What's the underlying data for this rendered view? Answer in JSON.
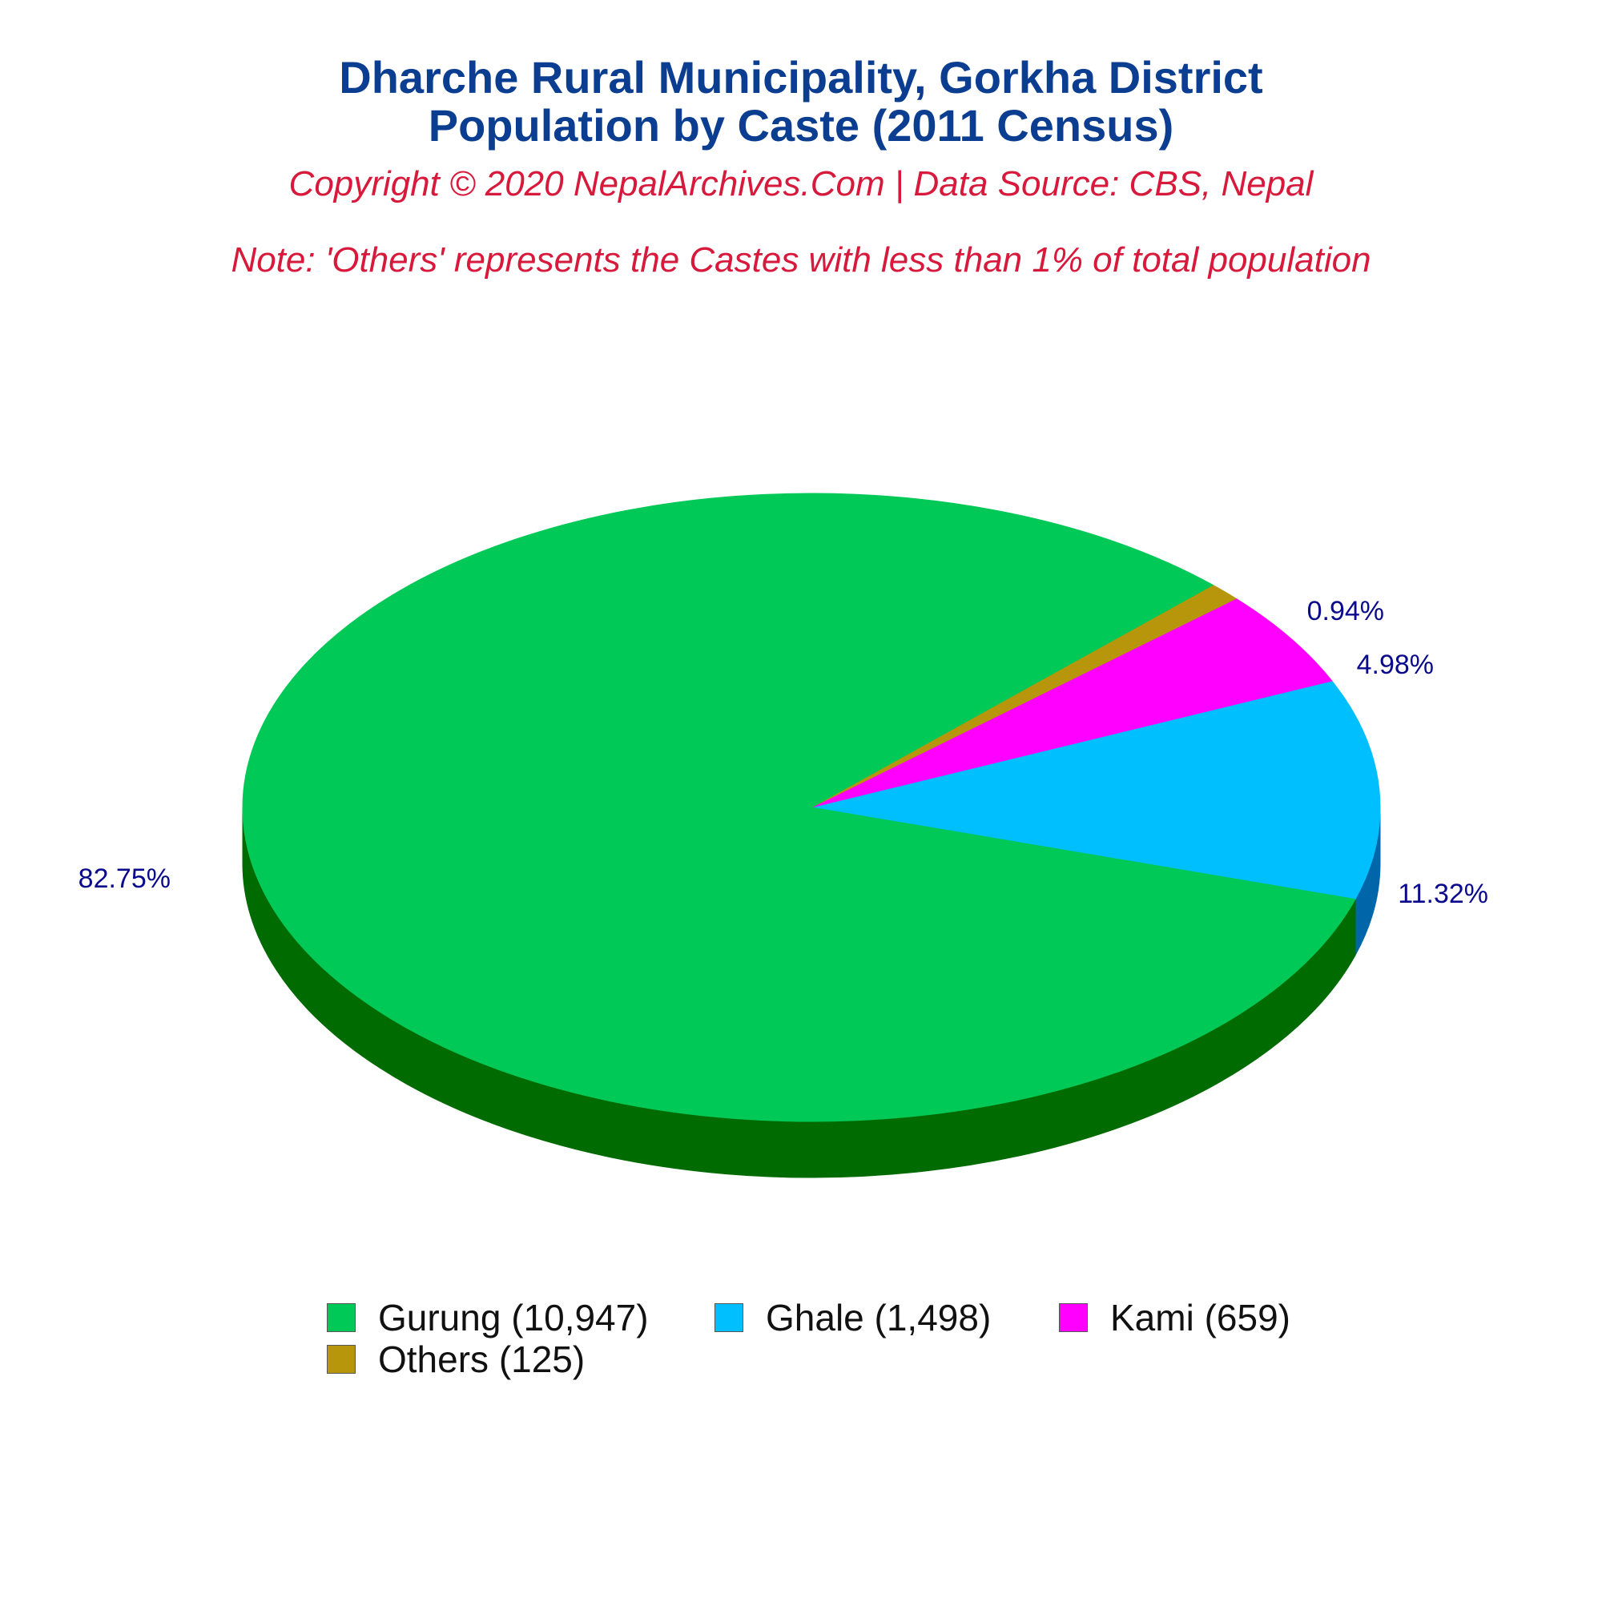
{
  "title_line1": "Dharche Rural Municipality, Gorkha District",
  "title_line2": "Population by Caste (2011 Census)",
  "copyright": "Copyright © 2020 NepalArchives.Com | Data Source: CBS, Nepal",
  "note": "Note: 'Others' represents the Castes with less than 1% of total population",
  "chart_data": {
    "type": "pie",
    "title": "Dharche Rural Municipality, Gorkha District Population by Caste (2011 Census)",
    "categories": [
      "Gurung",
      "Ghale",
      "Kami",
      "Others"
    ],
    "values": [
      10947,
      1498,
      659,
      125
    ],
    "percent_labels": [
      "82.75%",
      "11.32%",
      "4.98%",
      "0.94%"
    ],
    "legend_labels": [
      "Gurung (10,947)",
      "Ghale (1,498)",
      "Kami (659)",
      "Others (125)"
    ],
    "colors": [
      "#00c957",
      "#00bfff",
      "#ff00ff",
      "#b8960c"
    ],
    "side_colors": [
      "#006b00",
      "#0066aa",
      "#990099",
      "#6e5a07"
    ],
    "legend_placement": "bottom"
  }
}
